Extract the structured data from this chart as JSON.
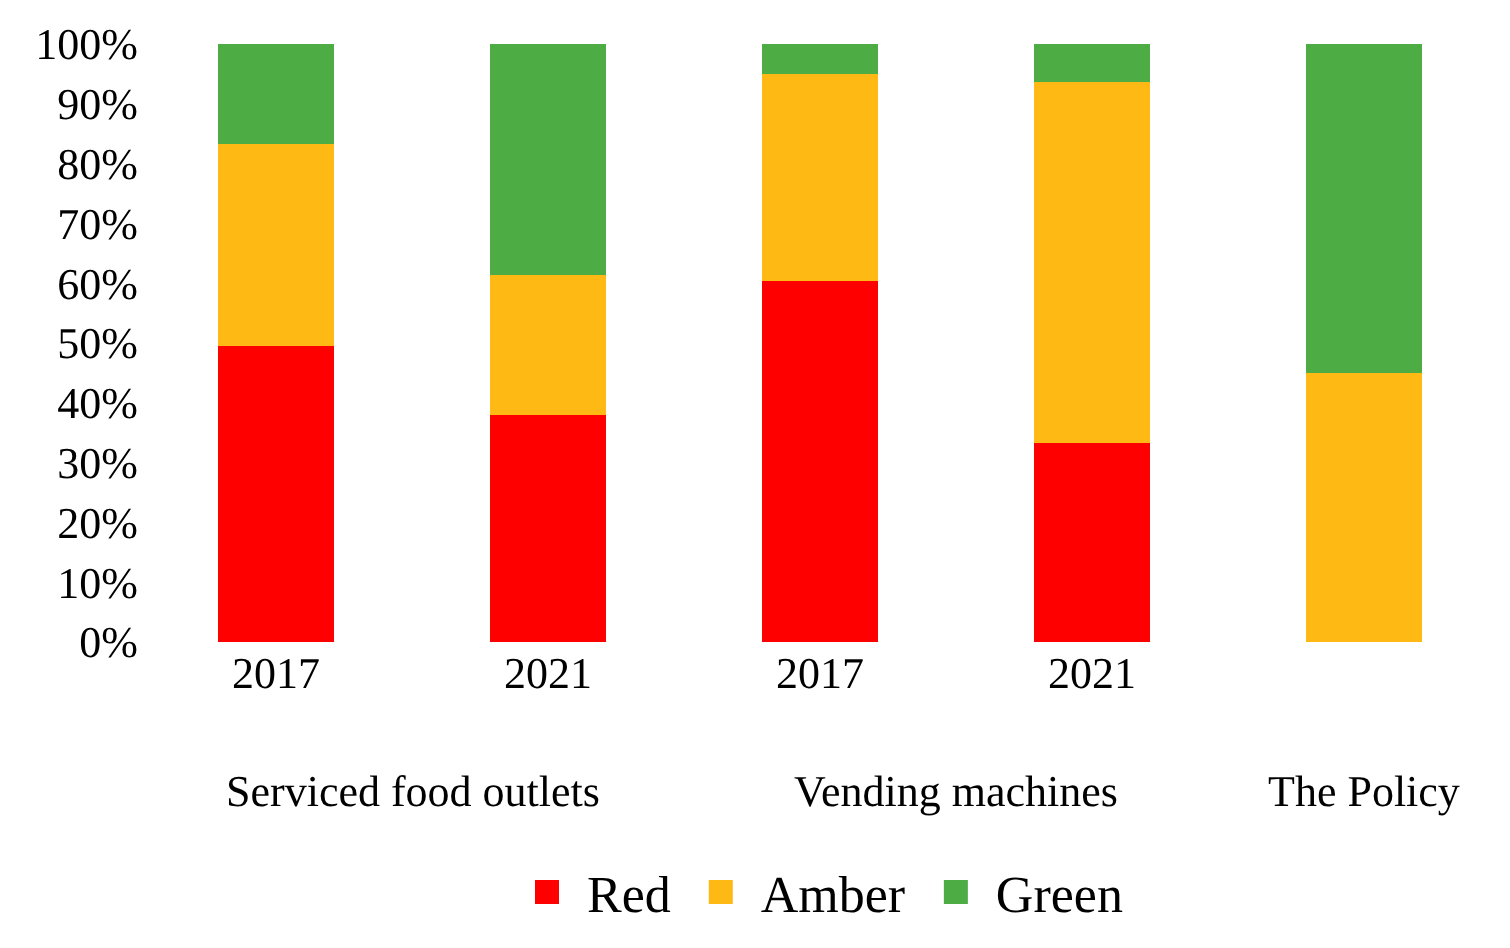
{
  "chart_data": {
    "type": "bar",
    "stacked": true,
    "categories": [
      "2017",
      "2021",
      "2017",
      "2021",
      null
    ],
    "series": [
      {
        "name": "Red",
        "color": "#ff0000",
        "values": [
          49.5,
          38,
          60.3,
          33.2,
          0
        ]
      },
      {
        "name": "Amber",
        "color": "#ffb914",
        "values": [
          33.8,
          23.3,
          34.7,
          60.4,
          45
        ]
      },
      {
        "name": "Green",
        "color": "#4eac44",
        "values": [
          16.7,
          38.7,
          5,
          6.4,
          55
        ]
      }
    ],
    "ylim": [
      0,
      100
    ],
    "yticks": [
      {
        "value": 0,
        "label": "0%"
      },
      {
        "value": 10,
        "label": "10%"
      },
      {
        "value": 20,
        "label": "20%"
      },
      {
        "value": 30,
        "label": "30%"
      },
      {
        "value": 40,
        "label": "40%"
      },
      {
        "value": 50,
        "label": "50%"
      },
      {
        "value": 60,
        "label": "60%"
      },
      {
        "value": 70,
        "label": "70%"
      },
      {
        "value": 80,
        "label": "80%"
      },
      {
        "value": 90,
        "label": "90%"
      },
      {
        "value": 100,
        "label": "100%"
      }
    ],
    "annotations": [
      "Serviced food outlets",
      "Vending machines",
      "The Policy"
    ],
    "legend": "bottom"
  }
}
